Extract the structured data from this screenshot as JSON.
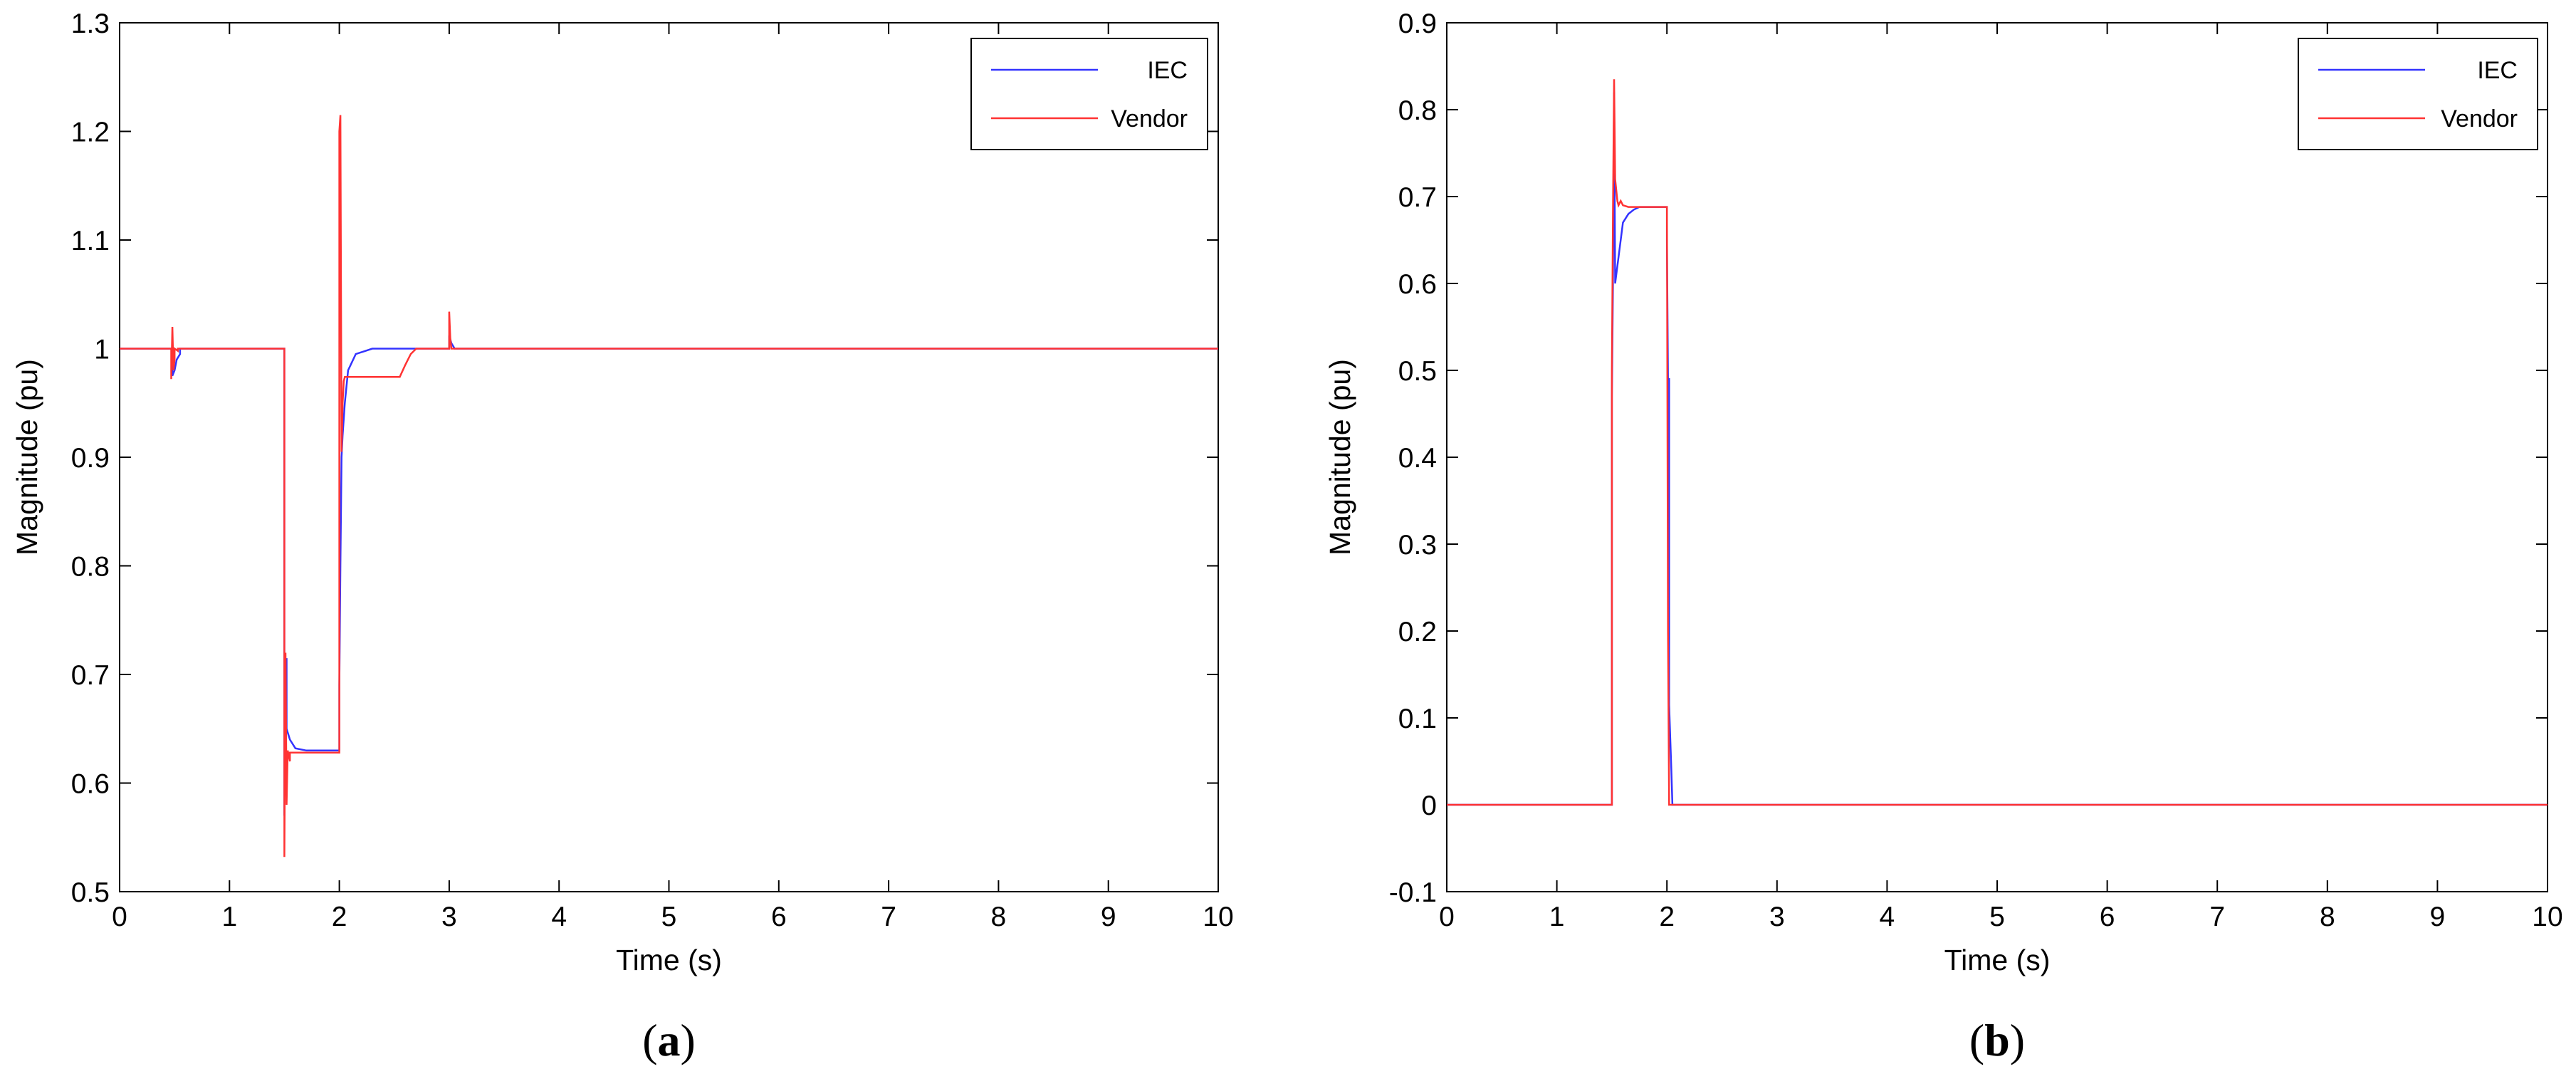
{
  "chart_data": [
    {
      "type": "line",
      "panel_label": "a",
      "xlabel": "Time (s)",
      "ylabel": "Magnitude (pu)",
      "xlim": [
        0,
        10
      ],
      "ylim": [
        0.5,
        1.3
      ],
      "xticks": [
        0,
        1,
        2,
        3,
        4,
        5,
        6,
        7,
        8,
        9,
        10
      ],
      "yticks": [
        0.5,
        0.6,
        0.7,
        0.8,
        0.9,
        1,
        1.1,
        1.2,
        1.3
      ],
      "ytick_labels": [
        "0.5",
        "0.6",
        "0.7",
        "0.8",
        "0.9",
        "1",
        "1.1",
        "1.2",
        "1.3"
      ],
      "grid": false,
      "legend": "top-right",
      "series": [
        {
          "name": "IEC",
          "color": "#3333ff",
          "x": [
            0,
            0.48,
            0.48,
            0.5,
            0.52,
            0.55,
            0.55,
            1.5,
            1.5,
            1.52,
            1.52,
            1.55,
            1.6,
            1.7,
            2.0,
            2.0,
            2.01,
            2.02,
            2.03,
            2.05,
            2.08,
            2.15,
            2.3,
            2.9,
            3.0,
            3.0,
            3.02,
            3.05,
            5,
            10
          ],
          "y": [
            1.0,
            1.0,
            0.975,
            0.98,
            0.99,
            0.995,
            1.0,
            1.0,
            0.57,
            0.715,
            0.65,
            0.64,
            0.632,
            0.63,
            0.63,
            0.69,
            0.8,
            0.9,
            0.92,
            0.95,
            0.98,
            0.995,
            1.0,
            1.0,
            1.0,
            1.012,
            1.005,
            1.0,
            1.0,
            1.0
          ]
        },
        {
          "name": "Vendor",
          "color": "#ff3333",
          "x": [
            0,
            0.47,
            0.47,
            0.48,
            0.49,
            0.5,
            0.5,
            0.53,
            0.53,
            1.5,
            1.5,
            1.51,
            1.52,
            1.53,
            1.55,
            1.55,
            1.97,
            1.98,
            1.99,
            2.0,
            2.0,
            2.01,
            2.02,
            2.03,
            2.04,
            2.05,
            2.05,
            2.55,
            2.6,
            2.65,
            2.7,
            2.98,
            2.99,
            3.0,
            3.0,
            3.01,
            3.02,
            3.05,
            5,
            10
          ],
          "y": [
            1.0,
            1.0,
            0.972,
            1.02,
            0.98,
            0.99,
            1.0,
            0.998,
            1.0,
            1.0,
            0.532,
            0.72,
            0.58,
            0.63,
            0.62,
            0.628,
            0.628,
            0.628,
            0.628,
            0.628,
            1.2,
            1.215,
            0.905,
            0.95,
            0.97,
            0.974,
            0.974,
            0.974,
            0.985,
            0.995,
            1.0,
            1.0,
            1.0,
            1.0,
            1.034,
            1.01,
            1.0,
            1.0,
            1.0,
            1.0
          ]
        }
      ]
    },
    {
      "type": "line",
      "panel_label": "b",
      "xlabel": "Time (s)",
      "ylabel": "Magnitude (pu)",
      "xlim": [
        0,
        10
      ],
      "ylim": [
        -0.1,
        0.9
      ],
      "xticks": [
        0,
        1,
        2,
        3,
        4,
        5,
        6,
        7,
        8,
        9,
        10
      ],
      "yticks": [
        -0.1,
        0,
        0.1,
        0.2,
        0.3,
        0.4,
        0.5,
        0.6,
        0.7,
        0.8,
        0.9
      ],
      "ytick_labels": [
        "-0.1",
        "0",
        "0.1",
        "0.2",
        "0.3",
        "0.4",
        "0.5",
        "0.6",
        "0.7",
        "0.8",
        "0.9"
      ],
      "grid": false,
      "legend": "top-right",
      "series": [
        {
          "name": "IEC",
          "color": "#3333ff",
          "x": [
            0,
            1.5,
            1.5,
            1.51,
            1.52,
            1.53,
            1.55,
            1.58,
            1.6,
            1.65,
            1.7,
            1.75,
            2.0,
            2.0,
            2.01,
            2.02,
            2.02,
            2.04,
            2.05,
            5,
            10
          ],
          "y": [
            0,
            0,
            0.47,
            0.6,
            0.82,
            0.6,
            0.62,
            0.65,
            0.67,
            0.68,
            0.685,
            0.688,
            0.688,
            0.65,
            0.49,
            0.49,
            0.115,
            0.04,
            0.0,
            0.0,
            0.0
          ]
        },
        {
          "name": "Vendor",
          "color": "#ff3333",
          "x": [
            0,
            1.5,
            1.5,
            1.51,
            1.52,
            1.53,
            1.55,
            1.56,
            1.58,
            1.6,
            1.65,
            2.0,
            2.0,
            2.01,
            2.02,
            5,
            10
          ],
          "y": [
            0,
            0,
            0.5,
            0.68,
            0.835,
            0.72,
            0.695,
            0.69,
            0.695,
            0.69,
            0.688,
            0.688,
            0.688,
            0.2,
            0.0,
            0.0,
            0.0
          ]
        }
      ]
    }
  ]
}
